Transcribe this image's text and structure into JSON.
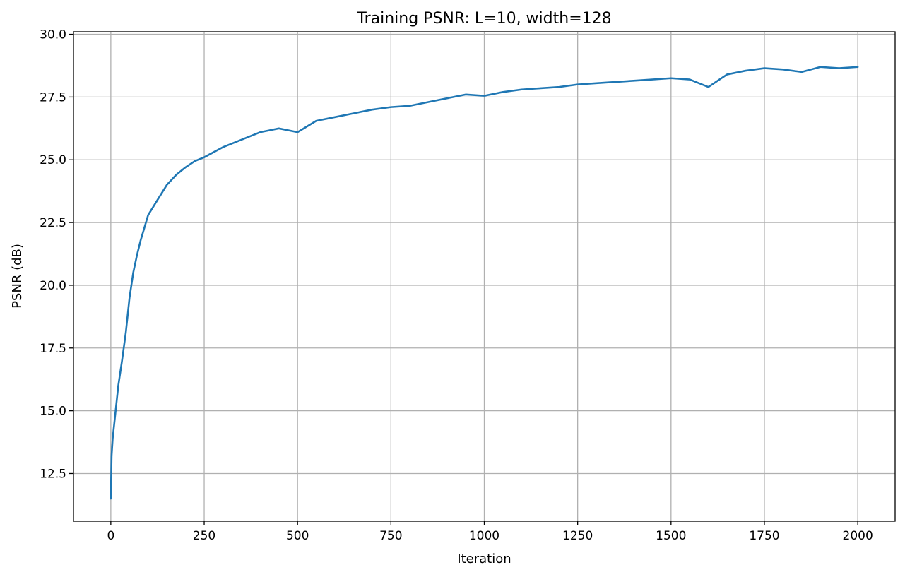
{
  "chart_data": {
    "type": "line",
    "title": "Training PSNR: L=10, width=128",
    "xlabel": "Iteration",
    "ylabel": "PSNR (dB)",
    "xlim": [
      -100,
      2100
    ],
    "ylim": [
      10.6,
      30.1
    ],
    "xticks": [
      0,
      250,
      500,
      750,
      1000,
      1250,
      1500,
      1750,
      2000
    ],
    "xtick_labels": [
      "0",
      "250",
      "500",
      "750",
      "1000",
      "1250",
      "1500",
      "1750",
      "2000"
    ],
    "yticks": [
      12.5,
      15.0,
      17.5,
      20.0,
      22.5,
      25.0,
      27.5,
      30.0
    ],
    "ytick_labels": [
      "12.5",
      "15.0",
      "17.5",
      "20.0",
      "22.5",
      "25.0",
      "27.5",
      "30.0"
    ],
    "grid": true,
    "series": [
      {
        "color": "#1f77b4",
        "x": [
          0,
          2,
          5,
          10,
          15,
          20,
          30,
          40,
          50,
          60,
          70,
          80,
          90,
          100,
          125,
          150,
          175,
          200,
          225,
          250,
          275,
          300,
          350,
          400,
          450,
          500,
          550,
          600,
          650,
          700,
          750,
          800,
          850,
          900,
          950,
          1000,
          1050,
          1100,
          1150,
          1200,
          1250,
          1300,
          1350,
          1400,
          1450,
          1500,
          1550,
          1600,
          1650,
          1700,
          1750,
          1800,
          1850,
          1900,
          1950,
          2000
        ],
        "y": [
          11.5,
          13.2,
          13.9,
          14.6,
          15.3,
          16.0,
          17.0,
          18.1,
          19.5,
          20.5,
          21.2,
          21.8,
          22.3,
          22.8,
          23.4,
          24.0,
          24.4,
          24.7,
          24.95,
          25.1,
          25.3,
          25.5,
          25.8,
          26.1,
          26.25,
          26.1,
          26.55,
          26.7,
          26.85,
          27.0,
          27.1,
          27.15,
          27.3,
          27.45,
          27.6,
          27.55,
          27.7,
          27.8,
          27.85,
          27.9,
          28.0,
          28.05,
          28.1,
          28.15,
          28.2,
          28.25,
          28.2,
          27.9,
          28.4,
          28.55,
          28.65,
          28.6,
          28.5,
          28.7,
          28.65,
          28.7
        ]
      }
    ]
  }
}
